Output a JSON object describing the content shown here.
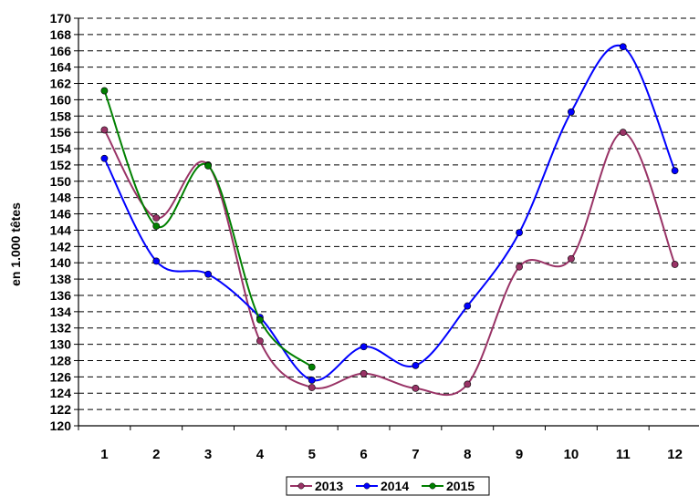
{
  "chart_data": {
    "type": "line",
    "title": "",
    "xlabel": "",
    "ylabel": "en 1.000 têtes",
    "categories": [
      "1",
      "2",
      "3",
      "4",
      "5",
      "6",
      "7",
      "8",
      "9",
      "10",
      "11",
      "12"
    ],
    "ylim": [
      120,
      170
    ],
    "yticks": [
      "120",
      "122",
      "124",
      "126",
      "128",
      "130",
      "132",
      "134",
      "136",
      "138",
      "140",
      "142",
      "144",
      "146",
      "148",
      "150",
      "152",
      "154",
      "156",
      "158",
      "160",
      "162",
      "164",
      "166",
      "168",
      "170"
    ],
    "grid": "dashed-horizontal",
    "legend_position": "bottom",
    "series": [
      {
        "name": "2013",
        "color": "#993366",
        "values": [
          156.3,
          145.5,
          152.0,
          130.4,
          124.7,
          126.4,
          124.6,
          125.1,
          139.5,
          140.5,
          156.0,
          139.8
        ]
      },
      {
        "name": "2014",
        "color": "#0000ff",
        "values": [
          152.8,
          140.2,
          138.6,
          133.3,
          125.6,
          129.7,
          127.4,
          134.7,
          143.7,
          158.5,
          166.5,
          151.3
        ]
      },
      {
        "name": "2015",
        "color": "#008000",
        "values": [
          161.1,
          144.5,
          151.9,
          133.0,
          127.2,
          null,
          null,
          null,
          null,
          null,
          null,
          null
        ]
      }
    ]
  }
}
